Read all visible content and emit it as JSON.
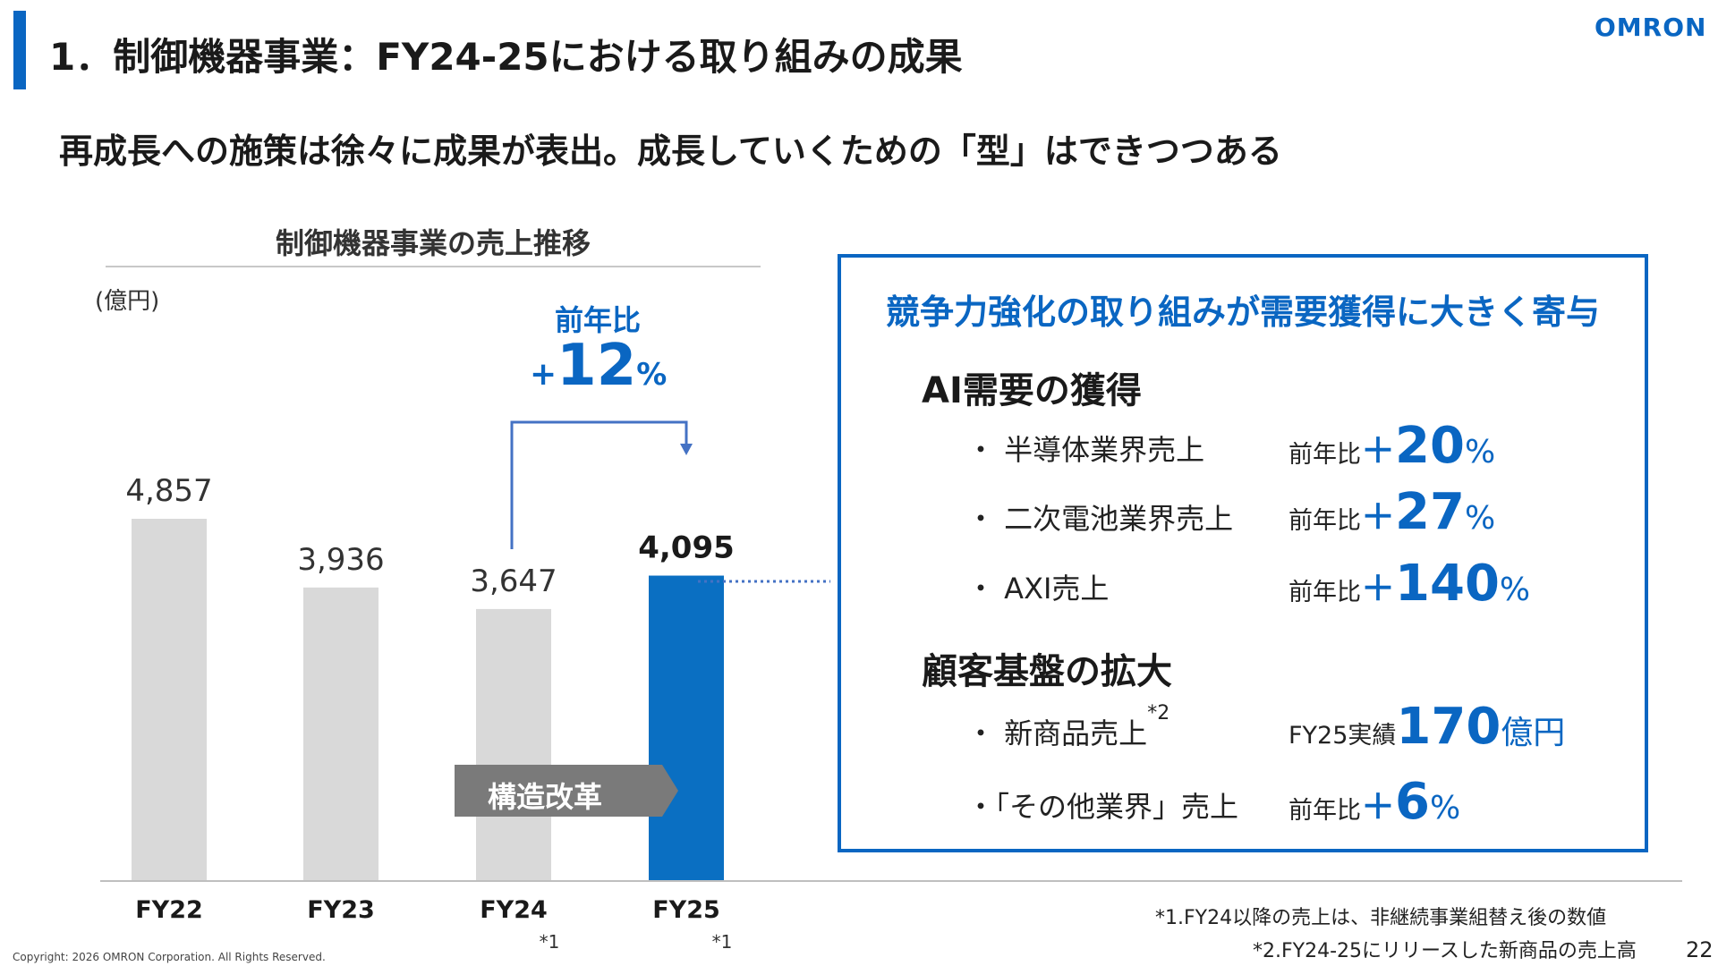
{
  "header": {
    "title": "1．制御機器事業：FY24-25における取り組みの成果",
    "logo": "OMRON",
    "subtitle": "再成長への施策は徐々に成果が表出。成長していくための「型」はできつつある"
  },
  "chart_data": {
    "type": "bar",
    "title": "制御機器事業の売上推移",
    "unit": "(億円)",
    "categories": [
      "FY22",
      "FY23",
      "FY24",
      "FY25"
    ],
    "values": [
      4857,
      3936,
      3647,
      4095
    ],
    "value_labels": [
      "4,857",
      "3,936",
      "3,647",
      "4,095"
    ],
    "footnote_marks": [
      "",
      "",
      "*1",
      "*1"
    ],
    "highlight_index": 3,
    "ylim": [
      0,
      5500
    ],
    "colors": {
      "default": "#d9d9d9",
      "highlight": "#0a6fc2",
      "axis": "#bfbfbf",
      "arrow": "#4472c4"
    }
  },
  "yoy": {
    "label": "前年比",
    "sign": "+",
    "value": "12",
    "unit": "%"
  },
  "reform_label": "構造改革",
  "panel": {
    "title": "競争力強化の取り組みが需要獲得に大きく寄与",
    "sections": [
      {
        "heading": "AI需要の獲得",
        "items": [
          {
            "label": "・ 半導体業界売上",
            "pre": "前年比",
            "plus": "＋",
            "num": "20",
            "suffix": "%"
          },
          {
            "label": "・ 二次電池業界売上",
            "pre": "前年比",
            "plus": "＋",
            "num": "27",
            "suffix": "%"
          },
          {
            "label": "・ AXI売上",
            "pre": "前年比",
            "plus": "＋",
            "num": "140",
            "suffix": "%"
          }
        ]
      },
      {
        "heading": "顧客基盤の拡大",
        "items": [
          {
            "label": "・ 新商品売上",
            "mark": "*2",
            "pre": "FY25実績",
            "plus": "",
            "num": "170",
            "suffix": "億円"
          },
          {
            "label": "・「その他業界」売上",
            "pre": "前年比",
            "plus": "＋",
            "num": "6",
            "suffix": "%"
          }
        ]
      }
    ]
  },
  "notes": [
    "*1.FY24以降の売上は、非継続事業組替え後の数値",
    "*2.FY24-25にリリースした新商品の売上高"
  ],
  "page_number": "22",
  "copyright": "Copyright: 2026 OMRON Corporation. All Rights Reserved."
}
